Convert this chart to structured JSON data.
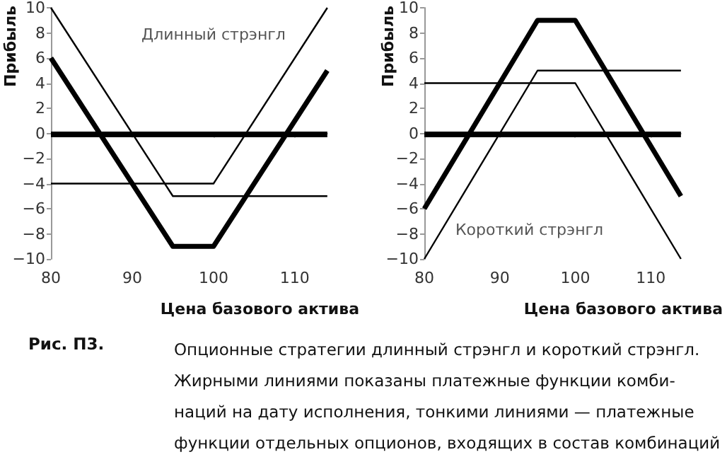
{
  "chart_data": [
    {
      "type": "line",
      "title": "Длинный стрэнгл",
      "xlabel": "Цена базового актива",
      "ylabel": "Прибыль",
      "xlim": [
        80,
        114
      ],
      "xticks": [
        80,
        90,
        100,
        110
      ],
      "ylim": [
        -10,
        10
      ],
      "yticks": [
        -10,
        -8,
        -6,
        -4,
        -2,
        0,
        2,
        4,
        6,
        8,
        10
      ],
      "grid": false,
      "marker": "none",
      "line_style": "solid",
      "ref_lines": [
        {
          "axis": "y",
          "value": 0,
          "color": "#000000"
        }
      ],
      "series": [
        {
          "color": "#000000",
          "x": [
            80,
            95,
            100,
            114
          ],
          "values": [
            6,
            -9,
            -9,
            5
          ]
        },
        {
          "color": "#000000",
          "x": [
            80,
            95,
            114
          ],
          "values": [
            10,
            -5,
            -5
          ]
        },
        {
          "color": "#000000",
          "x": [
            80,
            100,
            114
          ],
          "values": [
            -4,
            -4,
            10
          ]
        }
      ],
      "annotations": [
        "Рис. П3.",
        "Опционные стратегии длинный стрэнгл и короткий стрэнгл.",
        "Жирными линиями показаны платежные функции комби-",
        "наций на дату исполнения, тонкими линиями — платежные",
        "функции отдельных опционов, входящих в состав комбинаций"
      ]
    },
    {
      "type": "line",
      "title": "Короткий стрэнгл",
      "xlabel": "Цена базового актива",
      "ylabel": "Прибыль",
      "xlim": [
        80,
        114
      ],
      "xticks": [
        80,
        90,
        100,
        110
      ],
      "ylim": [
        -10,
        10
      ],
      "yticks": [
        -10,
        -8,
        -6,
        -4,
        -2,
        0,
        2,
        4,
        6,
        8,
        10
      ],
      "grid": false,
      "marker": "none",
      "line_style": "solid",
      "ref_lines": [
        {
          "axis": "y",
          "value": 0,
          "color": "#000000"
        }
      ],
      "series": [
        {
          "color": "#000000",
          "x": [
            80,
            95,
            100,
            114
          ],
          "values": [
            -6,
            9,
            9,
            -5
          ]
        },
        {
          "color": "#000000",
          "x": [
            80,
            95,
            114
          ],
          "values": [
            -10,
            5,
            5
          ]
        },
        {
          "color": "#000000",
          "x": [
            80,
            100,
            114
          ],
          "values": [
            4,
            4,
            -10
          ]
        }
      ]
    }
  ]
}
